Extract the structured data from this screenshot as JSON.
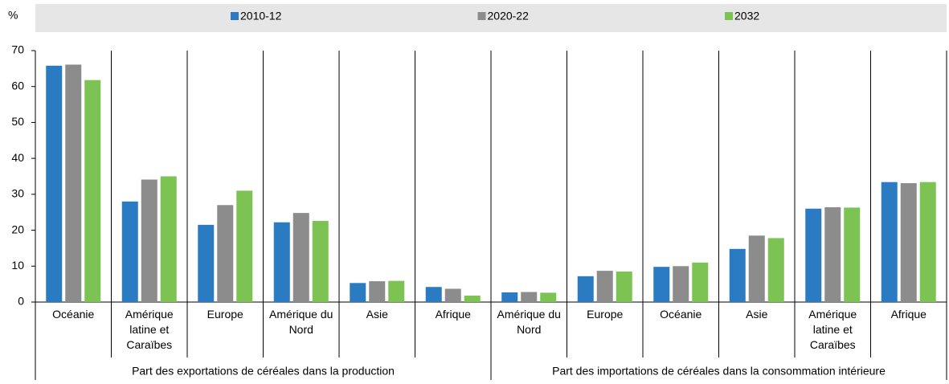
{
  "chart_data": {
    "type": "bar",
    "ylabel": "%",
    "categories": [
      "Océanie",
      "Amérique latine et Caraïbes",
      "Europe",
      "Amérique du Nord",
      "Asie",
      "Afrique",
      "Amérique du Nord",
      "Europe",
      "Océanie",
      "Asie",
      "Amérique latine et Caraïbes",
      "Afrique"
    ],
    "groups": [
      "Part des exportations de céréales dans la production",
      "Part des importations de céréales dans la consommation intérieure"
    ],
    "series": [
      {
        "name": "2010-12",
        "color": "#2a7bc1",
        "values": [
          65.8,
          28,
          21.5,
          22.2,
          5.3,
          4.2,
          2.7,
          7.2,
          9.8,
          14.8,
          26,
          33.4
        ]
      },
      {
        "name": "2020-22",
        "color": "#8c8c8c",
        "values": [
          66.1,
          34.1,
          27,
          24.8,
          5.8,
          3.7,
          2.8,
          8.7,
          10,
          18.5,
          26.4,
          33.1
        ]
      },
      {
        "name": "2032",
        "color": "#7dc354",
        "values": [
          61.8,
          35,
          31,
          22.6,
          5.9,
          1.8,
          2.6,
          8.5,
          11,
          17.8,
          26.3,
          33.4
        ]
      }
    ],
    "ylim": [
      0,
      70
    ],
    "yticks": [
      0,
      10,
      20,
      30,
      40,
      50,
      60,
      70
    ],
    "grid": false
  }
}
